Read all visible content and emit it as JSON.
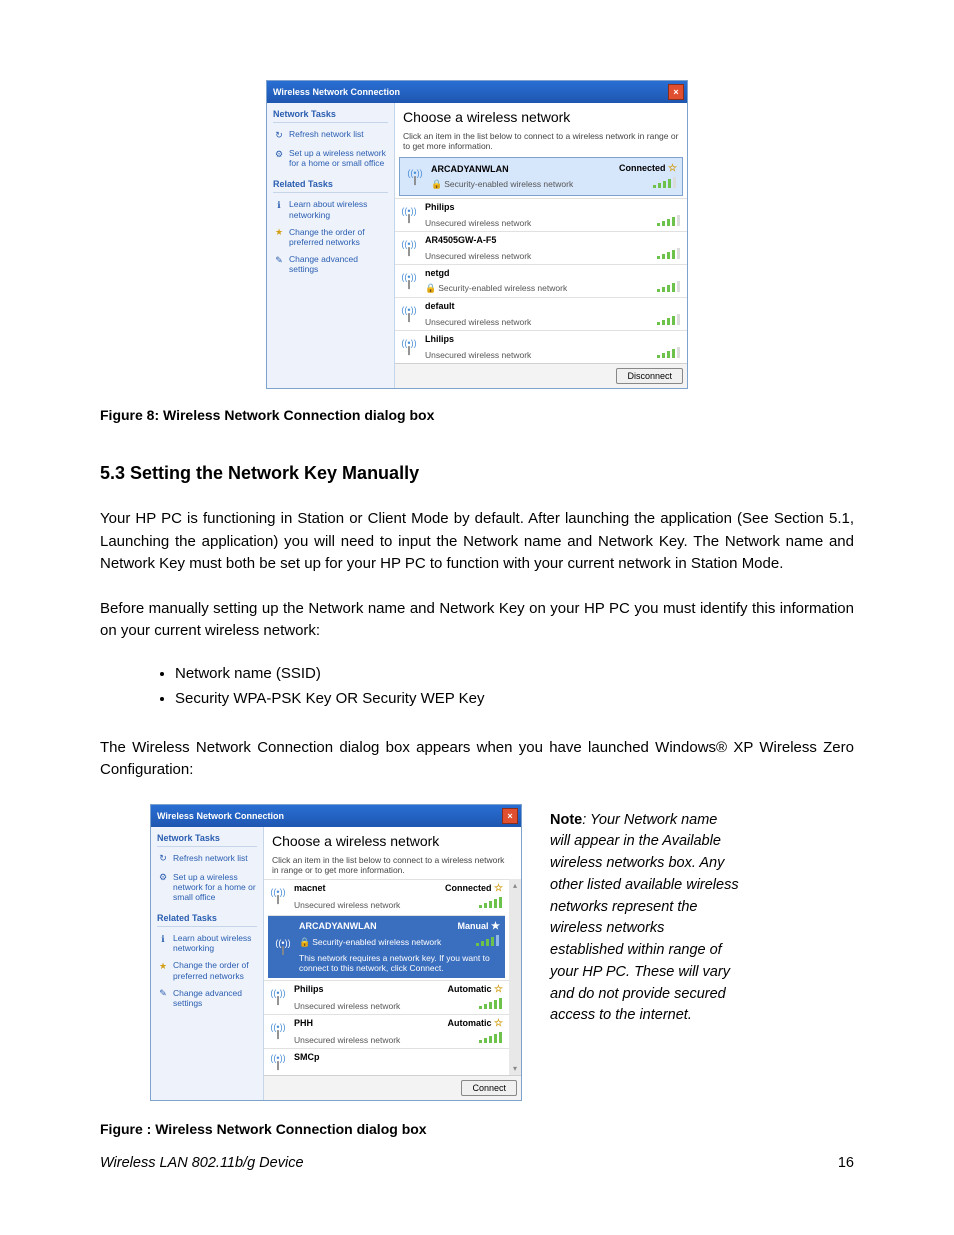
{
  "dialog1": {
    "title": "Wireless Network Connection",
    "main_title": "Choose a wireless network",
    "subtitle": "Click an item in the list below to connect to a wireless network in range or to get more information.",
    "side": {
      "hdr_tasks": "Network Tasks",
      "refresh": "Refresh network list",
      "setup": "Set up a wireless network for a home or small office",
      "hdr_related": "Related Tasks",
      "learn": "Learn about wireless networking",
      "order": "Change the order of preferred networks",
      "advanced": "Change advanced settings"
    },
    "networks": [
      {
        "name": "ARCADYANWLAN",
        "desc": "Security-enabled wireless network",
        "status": "Connected",
        "secure": true,
        "signal": 4,
        "selected": true
      },
      {
        "name": "Philips",
        "desc": "Unsecured wireless network",
        "status": "",
        "secure": false,
        "signal": 4
      },
      {
        "name": "AR4505GW-A-F5",
        "desc": "Unsecured wireless network",
        "status": "",
        "secure": false,
        "signal": 4
      },
      {
        "name": "netgd",
        "desc": "Security-enabled wireless network",
        "status": "",
        "secure": true,
        "signal": 4
      },
      {
        "name": "default",
        "desc": "Unsecured wireless network",
        "status": "",
        "secure": false,
        "signal": 4
      },
      {
        "name": "Lhilips",
        "desc": "Unsecured wireless network",
        "status": "",
        "secure": false,
        "signal": 4
      }
    ],
    "button": "Disconnect"
  },
  "caption1": "Figure 8: Wireless Network Connection dialog box",
  "section_heading": "5.3   Setting the Network Key Manually",
  "para1": "Your HP PC is functioning in Station or Client Mode by default.  After launching the application (See Section 5.1, Launching the application) you will need to input the Network name and Network Key. The Network name and Network Key must both be set up for your HP PC to function with your current network in Station Mode.",
  "para2": "Before manually setting up the Network name and Network Key on your HP PC you must identify this information on your current wireless network:",
  "bullets": [
    "Network name (SSID)",
    "Security WPA-PSK Key OR Security WEP Key"
  ],
  "para3": "The Wireless Network Connection dialog box appears when you have launched Windows® XP Wireless Zero Configuration:",
  "dialog2": {
    "title": "Wireless Network Connection",
    "main_title": "Choose a wireless network",
    "subtitle": "Click an item in the list below to connect to a wireless network in range or to get more information.",
    "side": {
      "hdr_tasks": "Network Tasks",
      "refresh": "Refresh network list",
      "setup": "Set up a wireless network for a home or small office",
      "hdr_related": "Related Tasks",
      "learn": "Learn about wireless networking",
      "order": "Change the order of preferred networks",
      "advanced": "Change advanced settings"
    },
    "networks": [
      {
        "name": "macnet",
        "desc": "Unsecured wireless network",
        "status": "Connected",
        "secure": false,
        "signal": 5,
        "star": true
      },
      {
        "name": "ARCADYANWLAN",
        "desc": "Security-enabled wireless network",
        "status": "Manual",
        "secure": true,
        "signal": 4,
        "dark": true,
        "msg": "This network requires a network key. If you want to connect to this network, click Connect."
      },
      {
        "name": "Philips",
        "desc": "Unsecured wireless network",
        "status": "Automatic",
        "secure": false,
        "signal": 5,
        "star": true
      },
      {
        "name": "PHH",
        "desc": "Unsecured wireless network",
        "status": "Automatic",
        "secure": false,
        "signal": 5,
        "star": true
      },
      {
        "name": "SMCp",
        "desc": "",
        "status": "",
        "secure": false,
        "signal": 2,
        "partial": true
      }
    ],
    "button": "Connect"
  },
  "note_label": "Note",
  "note_text": ": Your Network name will appear in the Available wireless networks box.  Any other listed available wireless networks represent the wireless networks established within range of your HP PC. These will vary and do not provide secured access to the internet.",
  "caption2": "Figure : Wireless Network Connection dialog box",
  "footer_left": "Wireless LAN 802.11b/g Device",
  "page_number": "16",
  "colors": {
    "link": "#2a5db0",
    "titlebar_top": "#2a6fd4",
    "titlebar_bot": "#1e56b0",
    "side_bg": "#eef3fb",
    "signal": "#6cc24a",
    "star": "#d4a017"
  }
}
